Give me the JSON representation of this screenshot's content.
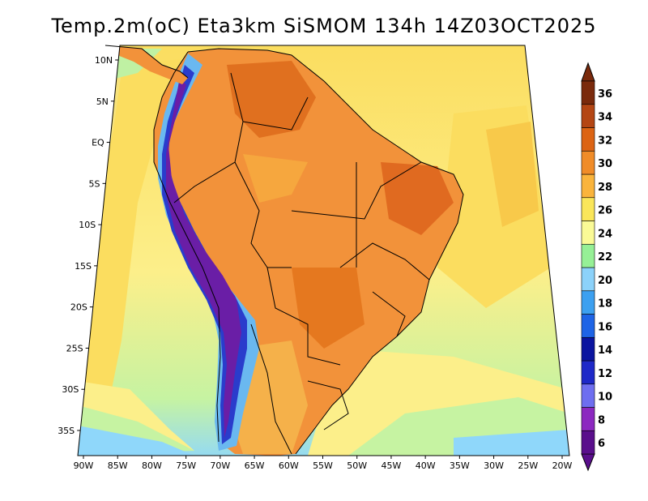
{
  "title": "Temp.2m(oC) Eta3km SiSMOM 134h 14Z03OCT2025",
  "map": {
    "lon_ticks": [
      "90W",
      "85W",
      "80W",
      "75W",
      "70W",
      "65W",
      "60W",
      "55W",
      "50W",
      "45W",
      "40W",
      "35W",
      "30W",
      "25W",
      "20W"
    ],
    "lat_ticks": [
      "10N",
      "5N",
      "EQ",
      "5S",
      "10S",
      "15S",
      "20S",
      "25S",
      "30S",
      "35S"
    ],
    "lon_range": [
      -90,
      -20
    ],
    "lat_range": [
      -38,
      12
    ]
  },
  "colorbar": {
    "units": "oC",
    "labels": [
      "6",
      "8",
      "10",
      "12",
      "14",
      "16",
      "18",
      "20",
      "22",
      "24",
      "26",
      "28",
      "30",
      "32",
      "34",
      "36"
    ],
    "colors": [
      "#5a0f8c",
      "#8c28c0",
      "#6e6ef0",
      "#1e28c8",
      "#0a14a0",
      "#1e64e6",
      "#3ca0f0",
      "#8cd2fa",
      "#96f096",
      "#fafa96",
      "#fae65a",
      "#fab43c",
      "#f08c28",
      "#dc6414",
      "#b44614",
      "#7a2a0c"
    ]
  },
  "palette": {
    "ocean_warm": "#fbdd5f",
    "ocean_mid": "#fcf08a",
    "ocean_cool": "#b9f1a0",
    "ocean_cold": "#8fd7fa",
    "land_hot": "#f2923a",
    "land_very_hot": "#e06a20",
    "andes_high": "#5a0f8c"
  }
}
